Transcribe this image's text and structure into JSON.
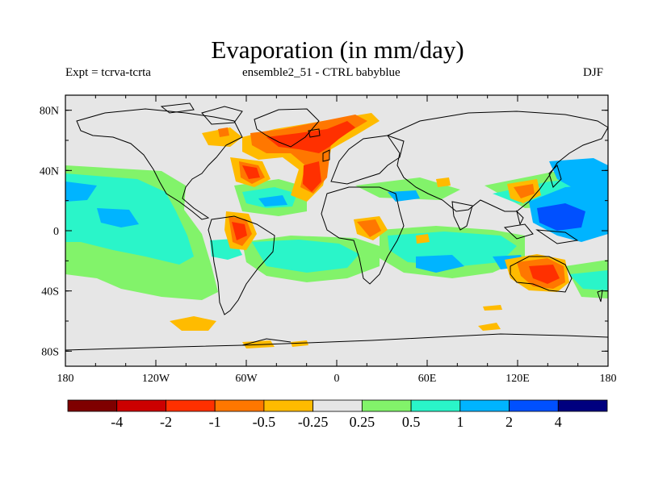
{
  "header": {
    "title": "Evaporation (in mm/day)",
    "left": "Expt = tcrva-tcrta",
    "center": "ensemble2_51 - CTRL babyblue",
    "right": "DJF"
  },
  "axes": {
    "x_ticks": [
      "180",
      "120W",
      "60W",
      "0",
      "60E",
      "120E",
      "180"
    ],
    "y_ticks": [
      "80N",
      "40N",
      "0",
      "40S",
      "80S"
    ]
  },
  "colorbar": {
    "colors": [
      "#7f0000",
      "#cc0000",
      "#ff3000",
      "#ff7700",
      "#ffbb00",
      "#e6e6e6",
      "#82f36a",
      "#2af5c9",
      "#00b4ff",
      "#0050ff",
      "#00007f"
    ],
    "labels": [
      "-4",
      "-2",
      "-1",
      "-0.5",
      "-0.25",
      "0.25",
      "0.5",
      "1",
      "2",
      "4"
    ]
  },
  "map_style": {
    "background": "#e6e6e6",
    "coastline": "#000000"
  }
}
